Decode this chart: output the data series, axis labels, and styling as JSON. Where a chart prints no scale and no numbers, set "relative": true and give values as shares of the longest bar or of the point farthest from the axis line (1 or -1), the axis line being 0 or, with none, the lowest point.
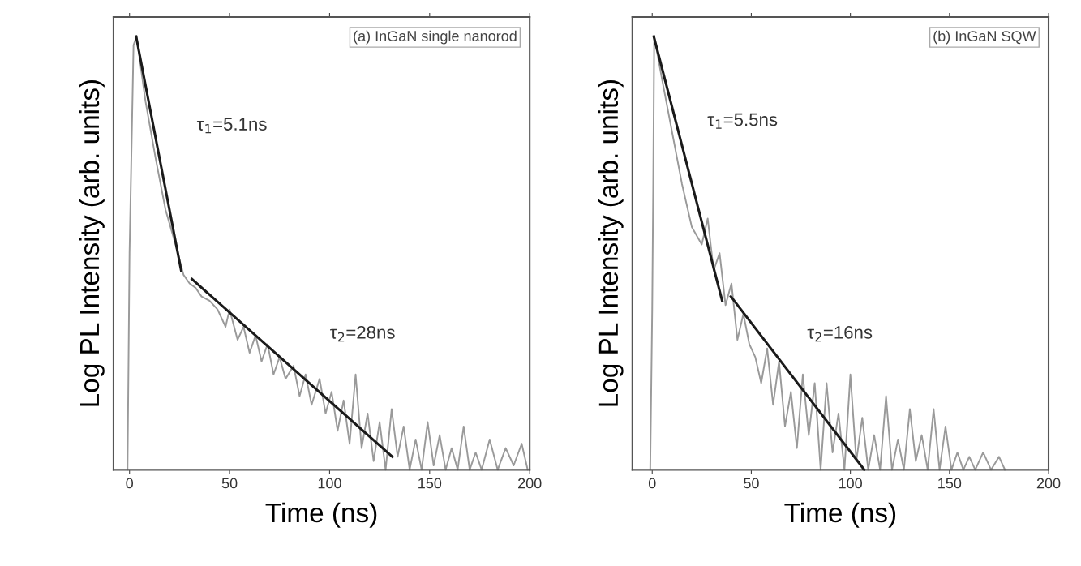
{
  "chart_data": [
    {
      "type": "line",
      "relative": true,
      "xlabel": "Time (ns)",
      "ylabel": "Log PL Intensity (arb. units)",
      "xlim": [
        -8,
        200
      ],
      "xticks": [
        0,
        50,
        100,
        150,
        200
      ],
      "grid": false,
      "annotations": [
        "(a) InGaN single nanorod",
        "τ$_{1}$=5.1ns",
        "τ$_{2}$=28ns"
      ],
      "series": [
        {
          "color": "#9a9a9a",
          "x": [
            -1,
            0,
            2,
            3.5,
            8,
            13,
            18,
            23,
            27,
            30,
            33,
            36,
            40,
            44,
            48,
            50,
            54,
            57,
            60,
            63,
            66,
            69,
            72,
            75,
            78,
            82,
            85,
            88,
            91,
            95,
            98,
            101,
            104,
            107,
            110,
            113,
            116,
            119,
            122,
            125,
            128,
            131,
            134,
            137,
            140,
            143,
            146,
            149,
            152,
            155,
            158,
            161,
            164,
            167,
            170,
            173,
            176,
            180,
            184,
            188,
            192,
            196,
            199
          ],
          "values": [
            0.0,
            0.5,
            0.98,
            1.0,
            0.85,
            0.72,
            0.6,
            0.52,
            0.45,
            0.43,
            0.42,
            0.4,
            0.39,
            0.37,
            0.33,
            0.37,
            0.3,
            0.33,
            0.27,
            0.31,
            0.25,
            0.29,
            0.22,
            0.26,
            0.21,
            0.24,
            0.17,
            0.22,
            0.15,
            0.21,
            0.13,
            0.18,
            0.09,
            0.16,
            0.06,
            0.22,
            0.05,
            0.13,
            0.02,
            0.11,
            0.0,
            0.14,
            0.03,
            0.1,
            0.0,
            0.07,
            0.0,
            0.11,
            0.01,
            0.08,
            0.0,
            0.05,
            0.0,
            0.1,
            0.0,
            0.04,
            0.0,
            0.07,
            0.0,
            0.05,
            0.01,
            0.06,
            0.0
          ]
        },
        {
          "color": "#1a1a1a",
          "x": [
            3.3,
            25.8
          ],
          "values": [
            1.0,
            0.46
          ]
        },
        {
          "color": "#1a1a1a",
          "x": [
            31.2,
            131.4
          ],
          "values": [
            0.44,
            0.03
          ]
        }
      ]
    },
    {
      "type": "line",
      "relative": true,
      "xlabel": "Time (ns)",
      "ylabel": "Log PL Intensity (arb. units)",
      "xlim": [
        -10,
        200
      ],
      "xticks": [
        0,
        50,
        100,
        150,
        200
      ],
      "grid": false,
      "annotations": [
        "(b) InGaN SQW",
        "τ$_{1}$=5.5ns",
        "τ$_{2}$=16ns"
      ],
      "series": [
        {
          "color": "#9a9a9a",
          "x": [
            -1,
            0,
            0.5,
            1,
            5,
            10,
            15,
            20,
            25,
            28,
            31,
            34,
            37,
            40,
            43,
            46,
            49,
            52,
            55,
            58,
            61,
            64,
            67,
            70,
            73,
            76,
            79,
            82,
            85,
            88,
            91,
            94,
            97,
            100,
            103,
            106,
            109,
            112,
            115,
            118,
            121,
            124,
            127,
            130,
            133,
            136,
            139,
            142,
            145,
            148,
            151,
            154,
            157,
            160,
            163,
            167,
            171,
            175,
            178
          ],
          "values": [
            0.0,
            0.37,
            0.65,
            1.0,
            0.9,
            0.78,
            0.66,
            0.56,
            0.52,
            0.58,
            0.46,
            0.5,
            0.38,
            0.43,
            0.3,
            0.36,
            0.29,
            0.26,
            0.2,
            0.28,
            0.15,
            0.25,
            0.1,
            0.18,
            0.05,
            0.22,
            0.08,
            0.2,
            0.0,
            0.2,
            0.04,
            0.13,
            0.0,
            0.22,
            0.02,
            0.12,
            0.0,
            0.08,
            0.0,
            0.17,
            0.0,
            0.07,
            0.0,
            0.14,
            0.02,
            0.08,
            0.0,
            0.14,
            0.0,
            0.1,
            0.0,
            0.04,
            0.0,
            0.03,
            0.0,
            0.04,
            0.0,
            0.03,
            0.0
          ]
        },
        {
          "color": "#1a1a1a",
          "x": [
            0.8,
            35.3
          ],
          "values": [
            1.0,
            0.39
          ]
        },
        {
          "color": "#1a1a1a",
          "x": [
            39.7,
            107
          ],
          "values": [
            0.4,
            0.0
          ]
        }
      ]
    }
  ]
}
